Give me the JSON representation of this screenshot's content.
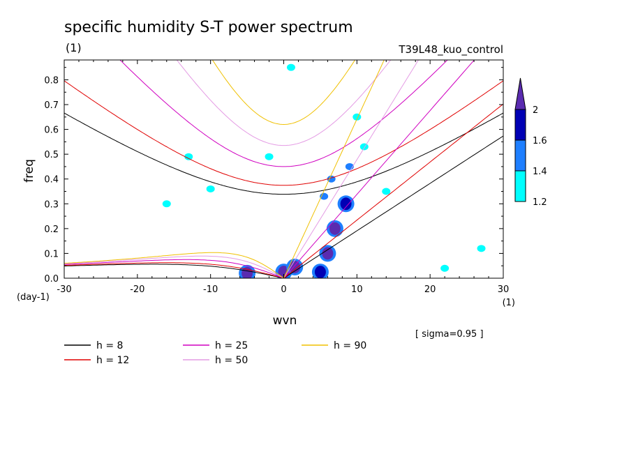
{
  "chart_data": {
    "type": "contour",
    "title": "specific humidity S-T power spectrum",
    "units_left": "(1)",
    "run_name": "T39L48_kuo_control",
    "xlabel": "wvn",
    "x_unit": "(1)",
    "ylabel": "freq",
    "y_unit": "(day-1)",
    "xlim": [
      -30,
      30
    ],
    "ylim": [
      0,
      0.88
    ],
    "x_ticks": [
      -30,
      -20,
      -10,
      0,
      10,
      20,
      30
    ],
    "x_tick_labels": [
      "-30",
      "-20",
      "-10",
      "0",
      "10",
      "20",
      "30"
    ],
    "y_ticks": [
      0,
      0.1,
      0.2,
      0.3,
      0.4,
      0.5,
      0.6,
      0.7,
      0.8
    ],
    "y_tick_labels": [
      "0.0",
      "0.1",
      "0.2",
      "0.3",
      "0.4",
      "0.5",
      "0.6",
      "0.7",
      "0.8"
    ],
    "sigma_note": "[ sigma=0.95 ]",
    "colorbar": {
      "levels": [
        1.2,
        1.4,
        1.6,
        2
      ],
      "labels": [
        "1.2",
        "1.4",
        "1.6",
        "2"
      ],
      "colors": [
        "#00ffff",
        "#1e7fff",
        "#0000b4",
        "#5a2bb0"
      ]
    },
    "dispersion_curves": [
      {
        "label": "h =  8",
        "h": 8,
        "color": "#000000"
      },
      {
        "label": "h = 12",
        "h": 12,
        "color": "#e00000"
      },
      {
        "label": "h = 25",
        "h": 25,
        "color": "#d000c0"
      },
      {
        "label": "h = 50",
        "h": 50,
        "color": "#e49be4"
      },
      {
        "label": "h = 90",
        "h": 90,
        "color": "#f0c000"
      }
    ],
    "shaded_regions": [
      {
        "x": -5,
        "y": 0.02,
        "level": 2
      },
      {
        "x": 0,
        "y": 0.025,
        "level": 2
      },
      {
        "x": 1.5,
        "y": 0.045,
        "level": 2
      },
      {
        "x": 5,
        "y": 0.025,
        "level": 1.6
      },
      {
        "x": 6,
        "y": 0.1,
        "level": 2
      },
      {
        "x": 7,
        "y": 0.2,
        "level": 2
      },
      {
        "x": 8.5,
        "y": 0.3,
        "level": 1.6
      },
      {
        "x": 9,
        "y": 0.45,
        "level": 1.4
      },
      {
        "x": 6.5,
        "y": 0.4,
        "level": 1.4
      },
      {
        "x": 5.5,
        "y": 0.33,
        "level": 1.4
      },
      {
        "x": 10,
        "y": 0.65,
        "level": 1.2
      },
      {
        "x": 11,
        "y": 0.53,
        "level": 1.2
      },
      {
        "x": -13,
        "y": 0.49,
        "level": 1.2
      },
      {
        "x": -10,
        "y": 0.36,
        "level": 1.2
      },
      {
        "x": -16,
        "y": 0.3,
        "level": 1.2
      },
      {
        "x": -2,
        "y": 0.49,
        "level": 1.2
      },
      {
        "x": 1,
        "y": 0.85,
        "level": 1.2
      },
      {
        "x": 14,
        "y": 0.35,
        "level": 1.2
      },
      {
        "x": 27,
        "y": 0.12,
        "level": 1.2
      },
      {
        "x": 22,
        "y": 0.04,
        "level": 1.2
      }
    ]
  }
}
